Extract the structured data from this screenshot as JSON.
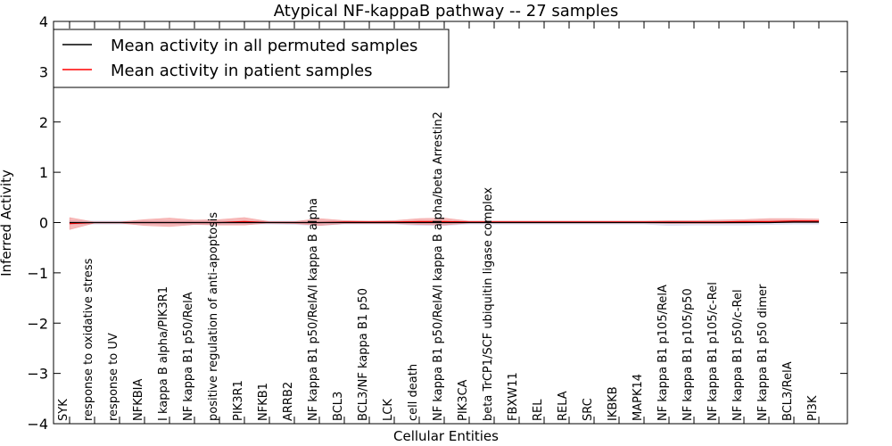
{
  "chart_data": {
    "type": "line",
    "title": "Atypical NF-kappaB pathway -- 27 samples",
    "xlabel": "Cellular Entities",
    "ylabel": "Inferred Activity",
    "ylim": [
      -4,
      4
    ],
    "yticks": [
      -4,
      -3,
      -2,
      -1,
      0,
      1,
      2,
      3,
      4
    ],
    "grid": false,
    "legend_position": "top-left",
    "categories": [
      "SYK",
      "response to oxidative stress",
      "response to UV",
      "NFKBIA",
      "I kappa B alpha/PIK3R1",
      "NF kappa B1 p50/RelA",
      "positive regulation of anti-apoptosis",
      "PIK3R1",
      "NFKB1",
      "ARRB2",
      "NF kappa B1 p50/RelA/I kappa B alpha",
      "BCL3",
      "BCL3/NF kappa B1 p50",
      "LCK",
      "cell death",
      "NF kappa B1 p50/RelA/I kappa B alpha/beta Arrestin2",
      "PIK3CA",
      "beta TrCP1/SCF ubiquitin ligase complex",
      "FBXW11",
      "REL",
      "RELA",
      "SRC",
      "IKBKB",
      "MAPK14",
      "NF kappa B1 p105/RelA",
      "NF kappa B1 p105/p50",
      "NF kappa B1 p105/c-Rel",
      "NF kappa B1 p50/c-Rel",
      "NF kappa B1 p50 dimer",
      "BCL3/RelA",
      "PI3K"
    ],
    "series": [
      {
        "name": "Mean activity in all permuted samples",
        "color": "#000000",
        "band_color": "#c8c8e6",
        "values": [
          0,
          0,
          0,
          0,
          0,
          0,
          0,
          0,
          0,
          0,
          0,
          0,
          0,
          0,
          0,
          0,
          0,
          0,
          0,
          0,
          0,
          0,
          0,
          0,
          0,
          0,
          0,
          0,
          0,
          0.01,
          0.01
        ],
        "band_upper": [
          0.04,
          0.03,
          0.03,
          0.03,
          0.03,
          0.03,
          0.03,
          0.03,
          0.03,
          0.03,
          0.03,
          0.03,
          0.03,
          0.03,
          0.03,
          0.03,
          0.03,
          0.03,
          0.03,
          0.03,
          0.03,
          0.03,
          0.03,
          0.03,
          0.03,
          0.03,
          0.03,
          0.03,
          0.03,
          0.04,
          0.04
        ],
        "band_lower": [
          -0.04,
          -0.03,
          -0.03,
          -0.03,
          -0.03,
          -0.04,
          -0.04,
          -0.03,
          -0.03,
          -0.04,
          -0.06,
          -0.03,
          -0.03,
          -0.03,
          -0.06,
          -0.06,
          -0.03,
          -0.03,
          -0.03,
          -0.03,
          -0.03,
          -0.03,
          -0.03,
          -0.03,
          -0.06,
          -0.05,
          -0.05,
          -0.05,
          -0.04,
          -0.03,
          -0.03
        ]
      },
      {
        "name": "Mean activity in patient samples",
        "color": "#ff0000",
        "band_color": "#f08080",
        "values": [
          -0.02,
          0,
          0,
          0,
          0,
          0,
          0,
          0.02,
          0,
          0,
          0,
          0.01,
          0.01,
          0.01,
          0.02,
          0.02,
          0.01,
          0.01,
          0.01,
          0.01,
          0.01,
          0.01,
          0.01,
          0.01,
          0.01,
          0.01,
          0.01,
          0.02,
          0.02,
          0.03,
          0.03
        ],
        "band_upper": [
          0.1,
          0.01,
          0.01,
          0.06,
          0.09,
          0.05,
          0.06,
          0.1,
          0.02,
          0.02,
          0.08,
          0.04,
          0.03,
          0.04,
          0.08,
          0.09,
          0.03,
          0.03,
          0.03,
          0.03,
          0.03,
          0.03,
          0.03,
          0.03,
          0.04,
          0.04,
          0.05,
          0.06,
          0.08,
          0.08,
          0.07
        ],
        "band_lower": [
          -0.14,
          -0.01,
          -0.01,
          -0.06,
          -0.08,
          -0.04,
          -0.05,
          -0.05,
          -0.01,
          -0.02,
          -0.06,
          -0.02,
          -0.02,
          -0.02,
          -0.04,
          -0.05,
          -0.01,
          -0.01,
          -0.01,
          -0.01,
          -0.01,
          -0.01,
          -0.01,
          -0.01,
          -0.02,
          -0.02,
          -0.02,
          -0.01,
          0,
          0,
          0
        ]
      }
    ]
  }
}
